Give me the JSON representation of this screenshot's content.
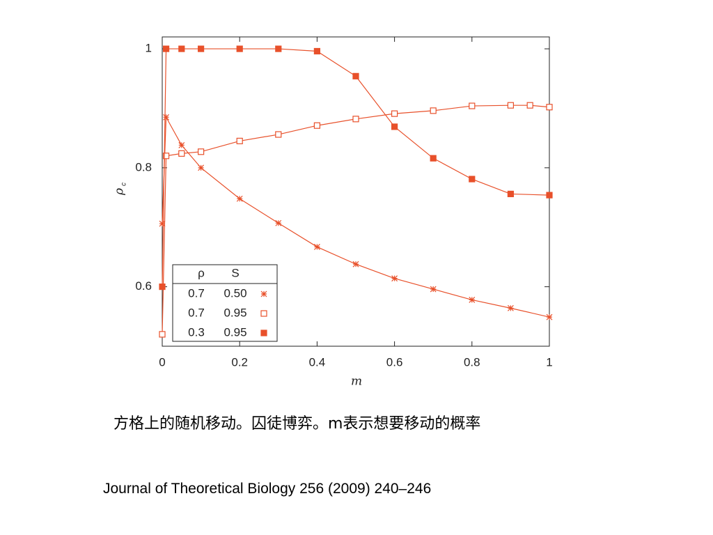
{
  "chart_data": {
    "type": "line",
    "xlabel": "m",
    "ylabel": "ρ",
    "ylabel_sub": "c",
    "xlim": [
      0,
      1
    ],
    "xticks": [
      0,
      0.2,
      0.4,
      0.6,
      0.8,
      1
    ],
    "ylim": [
      0.5,
      1.02
    ],
    "yticks": [
      0.6,
      0.8,
      1
    ],
    "legend_headers": [
      "ρ",
      "S"
    ],
    "legend_position": "lower left",
    "series": [
      {
        "rho": "0.7",
        "s": "0.50",
        "marker": "star",
        "color": "#e8502a",
        "x": [
          0,
          0.01,
          0.05,
          0.1,
          0.2,
          0.3,
          0.4,
          0.5,
          0.6,
          0.7,
          0.8,
          0.9,
          1
        ],
        "values": [
          0.706,
          0.885,
          0.838,
          0.8,
          0.748,
          0.707,
          0.667,
          0.638,
          0.614,
          0.596,
          0.578,
          0.564,
          0.549
        ]
      },
      {
        "rho": "0.7",
        "s": "0.95",
        "marker": "open-square",
        "color": "#e8502a",
        "x": [
          0,
          0.01,
          0.05,
          0.1,
          0.2,
          0.3,
          0.4,
          0.5,
          0.6,
          0.7,
          0.8,
          0.9,
          0.95,
          1
        ],
        "values": [
          0.52,
          0.82,
          0.824,
          0.827,
          0.845,
          0.856,
          0.871,
          0.882,
          0.891,
          0.896,
          0.904,
          0.905,
          0.905,
          0.902
        ]
      },
      {
        "rho": "0.3",
        "s": "0.95",
        "marker": "filled-square",
        "color": "#e8502a",
        "x": [
          0,
          0.01,
          0.05,
          0.1,
          0.2,
          0.3,
          0.4,
          0.5,
          0.6,
          0.7,
          0.8,
          0.9,
          1
        ],
        "values": [
          0.6,
          1,
          1,
          1,
          1,
          1,
          0.996,
          0.954,
          0.869,
          0.816,
          0.781,
          0.756,
          0.754
        ]
      }
    ]
  },
  "caption": "方格上的随机移动。囚徒博弈。m表示想要移动的概率",
  "citation": "Journal of Theoretical Biology 256 (2009) 240–246"
}
